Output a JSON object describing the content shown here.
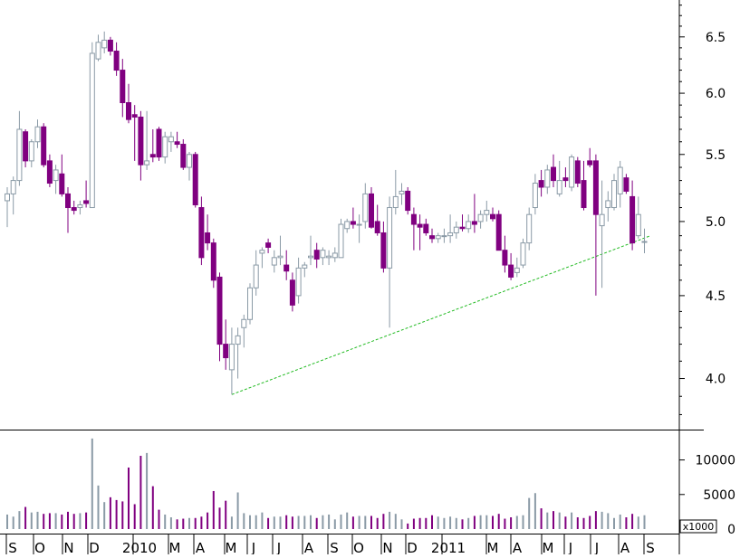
{
  "chart_data": {
    "type": "candlestick",
    "title": "",
    "xlabel": "",
    "ylabel": "",
    "price_axis": {
      "scale": "log",
      "ylim": [
        3.72,
        6.85
      ],
      "ticks": [
        {
          "value": 4.0,
          "label": "4.0"
        },
        {
          "value": 4.5,
          "label": "4.5"
        },
        {
          "value": 5.0,
          "label": "5.0"
        },
        {
          "value": 5.5,
          "label": "5.5"
        },
        {
          "value": 6.0,
          "label": "6.0"
        },
        {
          "value": 6.5,
          "label": "6.5"
        }
      ]
    },
    "volume_axis": {
      "ylim": [
        0,
        14000
      ],
      "unit_label": "x1000",
      "ticks": [
        {
          "value": 0,
          "label": "0"
        },
        {
          "value": 5000,
          "label": "5000"
        },
        {
          "value": 10000,
          "label": "10000"
        }
      ]
    },
    "month_labels": [
      "S",
      "O",
      "N",
      "D",
      "2010",
      "M",
      "A",
      "M",
      "J",
      "J",
      "A",
      "S",
      "O",
      "N",
      "D",
      "2011",
      "M",
      "A",
      "M",
      "J",
      "J",
      "A",
      "S"
    ],
    "trendline": {
      "from": {
        "week": 37,
        "price": 3.91
      },
      "to": {
        "week": 106,
        "price": 4.9
      }
    },
    "series": {
      "ohlc": [
        [
          5.15,
          5.25,
          4.96,
          5.2
        ],
        [
          5.2,
          5.33,
          5.05,
          5.3
        ],
        [
          5.3,
          5.85,
          5.26,
          5.7
        ],
        [
          5.68,
          5.7,
          5.4,
          5.45
        ],
        [
          5.45,
          5.62,
          5.4,
          5.6
        ],
        [
          5.6,
          5.78,
          5.55,
          5.72
        ],
        [
          5.72,
          5.75,
          5.4,
          5.42
        ],
        [
          5.45,
          5.5,
          5.25,
          5.28
        ],
        [
          5.3,
          5.42,
          5.2,
          5.38
        ],
        [
          5.35,
          5.5,
          5.18,
          5.2
        ],
        [
          5.2,
          5.25,
          4.92,
          5.1
        ],
        [
          5.1,
          5.15,
          5.05,
          5.08
        ],
        [
          5.1,
          5.15,
          5.05,
          5.12
        ],
        [
          5.15,
          5.3,
          5.1,
          5.13
        ],
        [
          5.1,
          6.45,
          5.1,
          6.35
        ],
        [
          6.3,
          6.52,
          6.28,
          6.45
        ],
        [
          6.4,
          6.55,
          6.35,
          6.47
        ],
        [
          6.47,
          6.5,
          6.33,
          6.37
        ],
        [
          6.37,
          6.45,
          6.15,
          6.2
        ],
        [
          6.2,
          6.3,
          5.8,
          5.92
        ],
        [
          5.92,
          6.08,
          5.75,
          5.78
        ],
        [
          5.82,
          5.9,
          5.45,
          5.8
        ],
        [
          5.8,
          5.85,
          5.3,
          5.42
        ],
        [
          5.42,
          5.85,
          5.38,
          5.45
        ],
        [
          5.5,
          5.7,
          5.44,
          5.48
        ],
        [
          5.7,
          5.72,
          5.45,
          5.48
        ],
        [
          5.48,
          5.68,
          5.43,
          5.64
        ],
        [
          5.6,
          5.68,
          5.52,
          5.64
        ],
        [
          5.6,
          5.68,
          5.55,
          5.58
        ],
        [
          5.58,
          5.62,
          5.38,
          5.4
        ],
        [
          5.4,
          5.52,
          5.3,
          5.5
        ],
        [
          5.5,
          5.52,
          5.1,
          5.12
        ],
        [
          5.1,
          5.18,
          4.7,
          4.75
        ],
        [
          4.92,
          5.05,
          4.8,
          4.85
        ],
        [
          4.85,
          4.88,
          4.55,
          4.6
        ],
        [
          4.62,
          4.65,
          4.1,
          4.2
        ],
        [
          4.2,
          4.35,
          4.05,
          4.12
        ],
        [
          4.05,
          4.3,
          3.91,
          4.2
        ],
        [
          4.2,
          4.3,
          4.0,
          4.25
        ],
        [
          4.3,
          4.38,
          4.18,
          4.35
        ],
        [
          4.35,
          4.58,
          4.32,
          4.55
        ],
        [
          4.55,
          4.8,
          4.5,
          4.7
        ],
        [
          4.78,
          4.82,
          4.68,
          4.8
        ],
        [
          4.85,
          4.88,
          4.78,
          4.82
        ],
        [
          4.7,
          4.8,
          4.65,
          4.75
        ],
        [
          4.75,
          4.9,
          4.7,
          4.76
        ],
        [
          4.7,
          4.8,
          4.6,
          4.66
        ],
        [
          4.6,
          4.65,
          4.4,
          4.44
        ],
        [
          4.5,
          4.75,
          4.45,
          4.68
        ],
        [
          4.68,
          4.72,
          4.62,
          4.7
        ],
        [
          4.75,
          4.9,
          4.7,
          4.76
        ],
        [
          4.8,
          4.85,
          4.68,
          4.74
        ],
        [
          4.75,
          4.82,
          4.7,
          4.8
        ],
        [
          4.75,
          4.8,
          4.7,
          4.76
        ],
        [
          4.75,
          4.82,
          4.72,
          4.78
        ],
        [
          4.75,
          5.02,
          4.75,
          4.98
        ],
        [
          4.95,
          5.02,
          4.92,
          5.0
        ],
        [
          5.0,
          5.1,
          4.95,
          4.98
        ],
        [
          4.98,
          5.05,
          4.85,
          4.98
        ],
        [
          5.0,
          5.28,
          4.95,
          5.2
        ],
        [
          5.2,
          5.25,
          4.95,
          4.96
        ],
        [
          5.0,
          5.12,
          4.9,
          4.92
        ],
        [
          4.92,
          5.0,
          4.65,
          4.68
        ],
        [
          4.68,
          5.18,
          4.3,
          5.1
        ],
        [
          5.1,
          5.38,
          5.05,
          5.18
        ],
        [
          5.2,
          5.28,
          5.12,
          5.22
        ],
        [
          5.22,
          5.25,
          5.05,
          5.08
        ],
        [
          5.05,
          5.1,
          4.8,
          4.98
        ],
        [
          4.98,
          5.05,
          4.8,
          4.96
        ],
        [
          4.98,
          5.02,
          4.9,
          4.92
        ],
        [
          4.9,
          4.95,
          4.85,
          4.88
        ],
        [
          4.88,
          4.92,
          4.85,
          4.9
        ],
        [
          4.9,
          4.95,
          4.85,
          4.9
        ],
        [
          4.9,
          5.05,
          4.85,
          4.92
        ],
        [
          4.92,
          5.0,
          4.88,
          4.96
        ],
        [
          4.96,
          5.05,
          4.93,
          4.95
        ],
        [
          4.95,
          5.05,
          4.92,
          5.0
        ],
        [
          5.0,
          5.2,
          4.92,
          4.98
        ],
        [
          5.0,
          5.08,
          4.95,
          5.05
        ],
        [
          5.05,
          5.15,
          5.0,
          5.08
        ],
        [
          5.05,
          5.1,
          5.0,
          5.02
        ],
        [
          5.05,
          5.08,
          4.8,
          4.8
        ],
        [
          4.8,
          4.9,
          4.65,
          4.7
        ],
        [
          4.7,
          4.78,
          4.6,
          4.62
        ],
        [
          4.65,
          4.75,
          4.62,
          4.68
        ],
        [
          4.7,
          4.88,
          4.68,
          4.85
        ],
        [
          4.85,
          5.1,
          4.8,
          5.05
        ],
        [
          5.1,
          5.35,
          5.05,
          5.28
        ],
        [
          5.3,
          5.38,
          5.18,
          5.25
        ],
        [
          5.25,
          5.42,
          5.2,
          5.38
        ],
        [
          5.4,
          5.5,
          5.25,
          5.3
        ],
        [
          5.2,
          5.45,
          5.18,
          5.3
        ],
        [
          5.32,
          5.4,
          5.25,
          5.3
        ],
        [
          5.25,
          5.5,
          5.22,
          5.48
        ],
        [
          5.45,
          5.48,
          5.25,
          5.28
        ],
        [
          5.3,
          5.45,
          5.08,
          5.1
        ],
        [
          5.45,
          5.55,
          5.4,
          5.42
        ],
        [
          5.45,
          5.5,
          4.5,
          5.05
        ],
        [
          4.97,
          5.3,
          4.55,
          5.05
        ],
        [
          5.1,
          5.22,
          5.0,
          5.15
        ],
        [
          5.1,
          5.35,
          5.08,
          5.3
        ],
        [
          5.2,
          5.45,
          5.1,
          5.4
        ],
        [
          5.32,
          5.35,
          5.2,
          5.22
        ],
        [
          5.18,
          5.3,
          4.8,
          4.85
        ],
        [
          4.9,
          5.18,
          4.88,
          5.05
        ],
        [
          4.86,
          4.95,
          4.78,
          4.86
        ]
      ],
      "volume": [
        2100,
        1800,
        2600,
        3200,
        2400,
        2500,
        2200,
        2300,
        2300,
        2100,
        2500,
        2200,
        2300,
        2400,
        13100,
        6300,
        3900,
        4600,
        4200,
        4000,
        8900,
        3600,
        10600,
        11000,
        6200,
        2800,
        2100,
        1700,
        1400,
        1500,
        1600,
        1600,
        1800,
        2400,
        5500,
        3100,
        4100,
        1800,
        5300,
        2300,
        2000,
        2000,
        2400,
        1600,
        1800,
        1800,
        2000,
        1800,
        1900,
        1900,
        2000,
        1600,
        2000,
        2100,
        1400,
        2100,
        2400,
        1800,
        1900,
        1900,
        1900,
        1600,
        2200,
        2500,
        2200,
        1400,
        800,
        1500,
        1600,
        1600,
        2000,
        1800,
        1600,
        1800,
        1600,
        1400,
        1600,
        1900,
        2000,
        2000,
        1900,
        2200,
        1500,
        1700,
        1900,
        2000,
        4500,
        5200,
        3000,
        2400,
        2600,
        2400,
        1800,
        2400,
        1700,
        1600,
        1900,
        2600,
        2500,
        2300,
        1600,
        2100,
        1700,
        2200,
        1800,
        2000
      ]
    }
  }
}
